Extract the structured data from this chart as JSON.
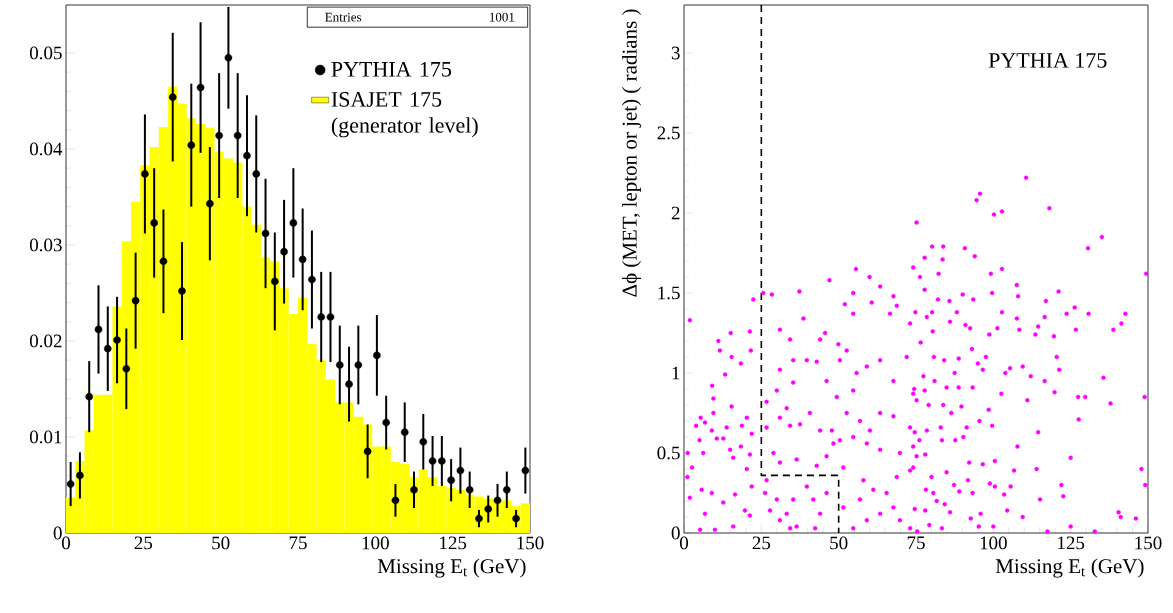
{
  "chart_data": [
    {
      "type": "histogram",
      "xlabel": "Missing E$_{t}$  (GeV)",
      "xlim": [
        0,
        150
      ],
      "xticks": [
        0,
        25,
        50,
        75,
        100,
        125,
        150
      ],
      "ylim": [
        0,
        0.055
      ],
      "yticks": [
        0,
        0.01,
        0.02,
        0.03,
        0.04,
        0.05
      ],
      "legend": "top right",
      "annotations": [
        "Entries",
        "1001"
      ],
      "series": [
        {
          "name": "PYTHIA 175",
          "type": "scatter",
          "color": "#000000",
          "x": [
            1.5,
            4.5,
            7.5,
            10.5,
            13.5,
            16.5,
            19.5,
            22.5,
            25.5,
            28.5,
            31.5,
            34.5,
            37.5,
            40.5,
            43.5,
            46.5,
            49.5,
            52.5,
            55.5,
            58.5,
            61.5,
            64.5,
            67.5,
            70.5,
            73.5,
            76.5,
            79.5,
            82.5,
            85.5,
            88.5,
            91.5,
            94.5,
            97.5,
            100.5,
            103.5,
            106.5,
            109.5,
            112.5,
            115.5,
            118.5,
            121.5,
            124.5,
            127.5,
            130.5,
            133.5,
            136.5,
            139.5,
            142.5,
            145.5,
            148.5
          ],
          "values": [
            0.0051,
            0.006,
            0.0142,
            0.0212,
            0.0192,
            0.0201,
            0.0171,
            0.0242,
            0.0374,
            0.0323,
            0.0283,
            0.0454,
            0.0252,
            0.0404,
            0.0464,
            0.0343,
            0.0414,
            0.0495,
            0.0414,
            0.0393,
            0.0374,
            0.0312,
            0.0262,
            0.0293,
            0.0323,
            0.0285,
            0.0264,
            0.0225,
            0.0225,
            0.0175,
            0.0155,
            0.0175,
            0.0085,
            0.0185,
            0.0115,
            0.0034,
            0.0105,
            0.0045,
            0.0095,
            0.0075,
            0.0075,
            0.0055,
            0.0065,
            0.0045,
            0.0015,
            0.0025,
            0.0034,
            0.0045,
            0.0015,
            0.0065
          ],
          "errors": [
            0.0023,
            0.0024,
            0.0037,
            0.0046,
            0.0044,
            0.0045,
            0.0042,
            0.005,
            0.0062,
            0.0057,
            0.0054,
            0.0067,
            0.0051,
            0.0064,
            0.0068,
            0.0059,
            0.0065,
            0.0053,
            0.0065,
            0.0063,
            0.0061,
            0.0057,
            0.0051,
            0.0054,
            0.0057,
            0.0053,
            0.0051,
            0.0047,
            0.0047,
            0.0041,
            0.0039,
            0.0041,
            0.0028,
            0.0042,
            0.0028,
            0.0017,
            0.0031,
            0.0019,
            0.0029,
            0.0026,
            0.0026,
            0.0022,
            0.0024,
            0.0019,
            0.0009,
            0.0014,
            0.0017,
            0.0019,
            0.0009,
            0.0024
          ]
        },
        {
          "name": "ISAJET 175 (generator level)",
          "type": "histogram",
          "color": "#ffff00",
          "bins": [
            0,
            3,
            6,
            9,
            12,
            15,
            18,
            21,
            24,
            27,
            30,
            33,
            36,
            39,
            42,
            45,
            48,
            51,
            54,
            57,
            60,
            63,
            66,
            69,
            72,
            75,
            78,
            81,
            84,
            87,
            90,
            93,
            96,
            99,
            102,
            105,
            108,
            111,
            114,
            117,
            120,
            123,
            126,
            129,
            132,
            135,
            138,
            141,
            144,
            147,
            150
          ],
          "values": [
            0.0037,
            0.0075,
            0.0107,
            0.0144,
            0.0144,
            0.0236,
            0.0304,
            0.0345,
            0.0383,
            0.0402,
            0.0423,
            0.0465,
            0.0447,
            0.0432,
            0.0426,
            0.0422,
            0.0397,
            0.039,
            0.0386,
            0.034,
            0.0321,
            0.0287,
            0.0283,
            0.0255,
            0.0228,
            0.0245,
            0.0197,
            0.018,
            0.016,
            0.0136,
            0.0136,
            0.0121,
            0.0113,
            0.009,
            0.009,
            0.0074,
            0.0072,
            0.0058,
            0.0066,
            0.0058,
            0.0049,
            0.0047,
            0.0045,
            0.004,
            0.0038,
            0.0036,
            0.0034,
            0.0034,
            0.0028,
            0.0031
          ]
        }
      ]
    },
    {
      "type": "scatter",
      "xlabel": "Missing E$_{t}$  (GeV)",
      "ylabel": "Δϕ (MET, lepton or jet) ( radians )",
      "xlim": [
        0,
        150
      ],
      "xticks": [
        0,
        25,
        50,
        75,
        100,
        125,
        150
      ],
      "ylim": [
        0,
        3.3
      ],
      "yticks": [
        0,
        0.5,
        1,
        1.5,
        2,
        2.5,
        3
      ],
      "annotations": [
        "PYTHIA 175"
      ],
      "series": [
        {
          "type": "scatter",
          "color": "#ff00ff",
          "x": [
            1.9,
            15.1,
            11.1,
            11.6,
            13.3,
            15.4,
            18.4,
            21.6,
            9.1,
            9.5,
            3.9,
            5.4,
            6.8,
            9.5,
            15.4,
            13.8,
            18.7,
            20.3,
            1.2,
            5.0,
            2.6,
            6.2,
            9.0,
            10.6,
            12.7,
            14.9,
            15.9,
            18.4,
            21.3,
            21.9,
            20.3,
            1.1,
            5.7,
            9.0,
            6.8,
            5.2,
            10.0,
            12.7,
            16.5,
            19.7,
            21.3,
            21.9,
            15.9,
            1.9,
            26.2,
            27.8,
            30.0,
            31.0,
            33.2,
            35.3,
            36.4,
            39.7,
            41.8,
            44.0,
            46.1,
            42.4,
            34.3,
            26.7,
            31.0,
            28.9,
            36.4,
            42.9,
            46.1,
            26.7,
            31.0,
            34.3,
            37.5,
            40.7,
            44.0,
            47.8,
            48.3,
            33.2,
            35.3,
            30.0,
            26.7,
            31.0,
            35.3,
            39.7,
            42.9,
            46.1,
            49.4,
            31.0,
            34.3,
            38.6,
            44.0,
            45.6,
            25.6,
            22.4,
            21.3,
            37.3,
            28.4,
            49.9,
            52.6,
            50.4,
            55.8,
            54.7,
            59.1,
            63.4,
            67.7,
            72.0,
            74.1,
            54.7,
            52.0,
            60.7,
            66.6,
            68.8,
            73.1,
            54.7,
            63.4,
            67.7,
            52.6,
            56.9,
            60.1,
            63.4,
            67.7,
            73.1,
            50.4,
            54.7,
            59.1,
            63.4,
            69.8,
            74.1,
            51.5,
            58.0,
            61.2,
            65.5,
            68.8,
            74.1,
            51.5,
            56.9,
            59.1,
            63.4,
            67.7,
            73.1,
            69.8,
            54.7,
            55.6,
            47.0,
            60.0,
            110.6,
            95.7,
            94.6,
            100.2,
            102.8,
            118.1,
            75.2,
            135.1,
            130.6,
            80.2,
            83.8,
            90.8,
            94.0,
            74.1,
            77.8,
            83.6,
            102.8,
            149.4,
            76.3,
            82.3,
            99.2,
            77.8,
            107.6,
            121.1,
            90.1,
            93.5,
            99.6,
            108.0,
            117.0,
            82.1,
            85.8,
            126.3,
            142.7,
            130.8,
            123.7,
            74.8,
            80.2,
            88.2,
            102.8,
            78.5,
            86.0,
            91.0,
            92.5,
            101.3,
            107.6,
            116.6,
            114.5,
            108.4,
            113.6,
            119.6,
            126.7,
            138.8,
            141.4,
            80.4,
            76.5,
            98.7,
            93.1,
            80.8,
            84.1,
            88.8,
            95.0,
            97.6,
            96.6,
            105.4,
            109.5,
            120.5,
            121.3,
            112.1,
            103.9,
            116.6,
            135.6,
            77.4,
            81.0,
            87.5,
            74.4,
            77.8,
            84.9,
            88.8,
            93.3,
            102.6,
            111.0,
            119.8,
            127.4,
            129.7,
            137.9,
            148.9,
            127.6,
            75.2,
            79.1,
            83.8,
            86.4,
            89.7,
            98.5,
            99.6,
            95.5,
            91.4,
            83.0,
            78.5,
            74.6,
            83.4,
            87.7,
            90.3,
            76.1,
            107.8,
            114.5,
            125.0,
            147.9,
            149.1,
            75.2,
            78.0,
            73.1,
            80.0,
            84.9,
            92.2,
            96.6,
            100.5,
            106.7,
            114.0,
            122.0,
            122.6,
            115.1,
            105.6,
            103.5,
            100.5,
            98.9,
            93.3,
            91.8,
            89.0,
            87.3,
            80.6,
            78.2,
            81.7,
            84.3,
            74.6,
            78.0,
            86.0,
            92.7,
            95.9,
            104.5,
            109.5,
            140.5,
            141.2,
            146.1,
            125.0,
            95.3,
            79.3,
            83.4,
            132.8,
            117.5,
            75.4,
            100.0
          ],
          "values": [
            1.33,
            1.25,
            1.2,
            1.14,
            0.99,
            1.1,
            1.06,
            1.14,
            0.92,
            0.84,
            0.67,
            0.72,
            0.69,
            0.75,
            0.79,
            0.66,
            0.67,
            0.72,
            0.5,
            0.58,
            0.41,
            0.5,
            0.64,
            0.59,
            0.59,
            0.52,
            0.47,
            0.54,
            0.49,
            0.62,
            0.4,
            0.35,
            0.27,
            0.25,
            0.12,
            0.02,
            0.02,
            0.19,
            0.24,
            0.14,
            0.11,
            0.29,
            0.04,
            0.22,
            0.25,
            0.14,
            0.21,
            0.08,
            0.12,
            0.21,
            0.04,
            0.29,
            0.21,
            0.12,
            0.25,
            0.03,
            0.03,
            0.33,
            0.44,
            0.5,
            0.46,
            0.42,
            0.48,
            0.66,
            0.72,
            0.67,
            0.68,
            0.75,
            0.64,
            0.64,
            0.56,
            0.78,
            0.94,
            0.89,
            0.82,
            1.02,
            1.08,
            1.08,
            1.07,
            0.95,
            0.85,
            1.27,
            1.21,
            1.34,
            1.21,
            1.25,
            1.5,
            1.46,
            1.26,
            1.51,
            1.49,
            1.18,
            1.14,
            1.08,
            1.0,
            0.89,
            1.04,
            1.08,
            0.95,
            1.1,
            0.87,
            1.37,
            1.43,
            1.44,
            1.37,
            1.42,
            1.31,
            1.5,
            1.54,
            1.48,
            0.75,
            0.7,
            0.64,
            0.75,
            0.73,
            0.66,
            0.58,
            0.6,
            0.56,
            0.52,
            0.5,
            0.54,
            0.41,
            0.33,
            0.27,
            0.25,
            0.35,
            0.41,
            0.16,
            0.21,
            0.08,
            0.12,
            0.16,
            0.03,
            0.08,
            0.03,
            1.65,
            1.58,
            1.6,
            2.22,
            2.12,
            2.08,
            1.99,
            2.01,
            2.03,
            1.94,
            1.85,
            1.78,
            1.79,
            1.79,
            1.78,
            1.73,
            1.66,
            1.72,
            1.71,
            1.65,
            1.62,
            1.6,
            1.62,
            1.62,
            1.52,
            1.55,
            1.51,
            1.49,
            1.46,
            1.5,
            1.48,
            1.45,
            1.46,
            1.45,
            1.41,
            1.37,
            1.37,
            1.37,
            1.38,
            1.38,
            1.38,
            1.38,
            1.35,
            1.32,
            1.3,
            1.28,
            1.28,
            1.34,
            1.35,
            1.29,
            1.27,
            1.24,
            1.23,
            1.27,
            1.27,
            1.31,
            1.26,
            1.19,
            1.24,
            1.15,
            1.1,
            1.08,
            1.09,
            1.06,
            1.1,
            1.02,
            1.03,
            1.04,
            1.1,
            1.02,
            0.98,
            1.0,
            0.95,
            0.97,
            0.98,
            0.95,
            1.0,
            0.9,
            0.89,
            0.91,
            0.91,
            0.91,
            0.87,
            0.83,
            0.88,
            0.85,
            0.85,
            0.81,
            0.85,
            0.71,
            0.83,
            0.8,
            0.8,
            0.75,
            0.79,
            0.77,
            0.67,
            0.7,
            0.66,
            0.66,
            0.64,
            0.63,
            0.58,
            0.58,
            0.6,
            0.58,
            0.54,
            0.63,
            0.47,
            0.4,
            0.3,
            0.48,
            0.49,
            0.39,
            0.35,
            0.38,
            0.44,
            0.43,
            0.45,
            0.39,
            0.4,
            0.3,
            0.23,
            0.21,
            0.29,
            0.24,
            0.29,
            0.31,
            0.25,
            0.33,
            0.26,
            0.3,
            0.25,
            0.27,
            0.2,
            0.18,
            0.15,
            0.14,
            0.13,
            0.09,
            0.12,
            0.14,
            0.1,
            0.13,
            0.1,
            0.09,
            0.04,
            0.04,
            0.05,
            0.03,
            0.01,
            0.01,
            0.01,
            0.04
          ]
        },
        {
          "type": "line",
          "color": "#000000",
          "line_style": "dashed",
          "x": [
            25,
            25,
            50,
            50
          ],
          "values": [
            3.3,
            0.36,
            0.36,
            0
          ]
        }
      ]
    }
  ]
}
